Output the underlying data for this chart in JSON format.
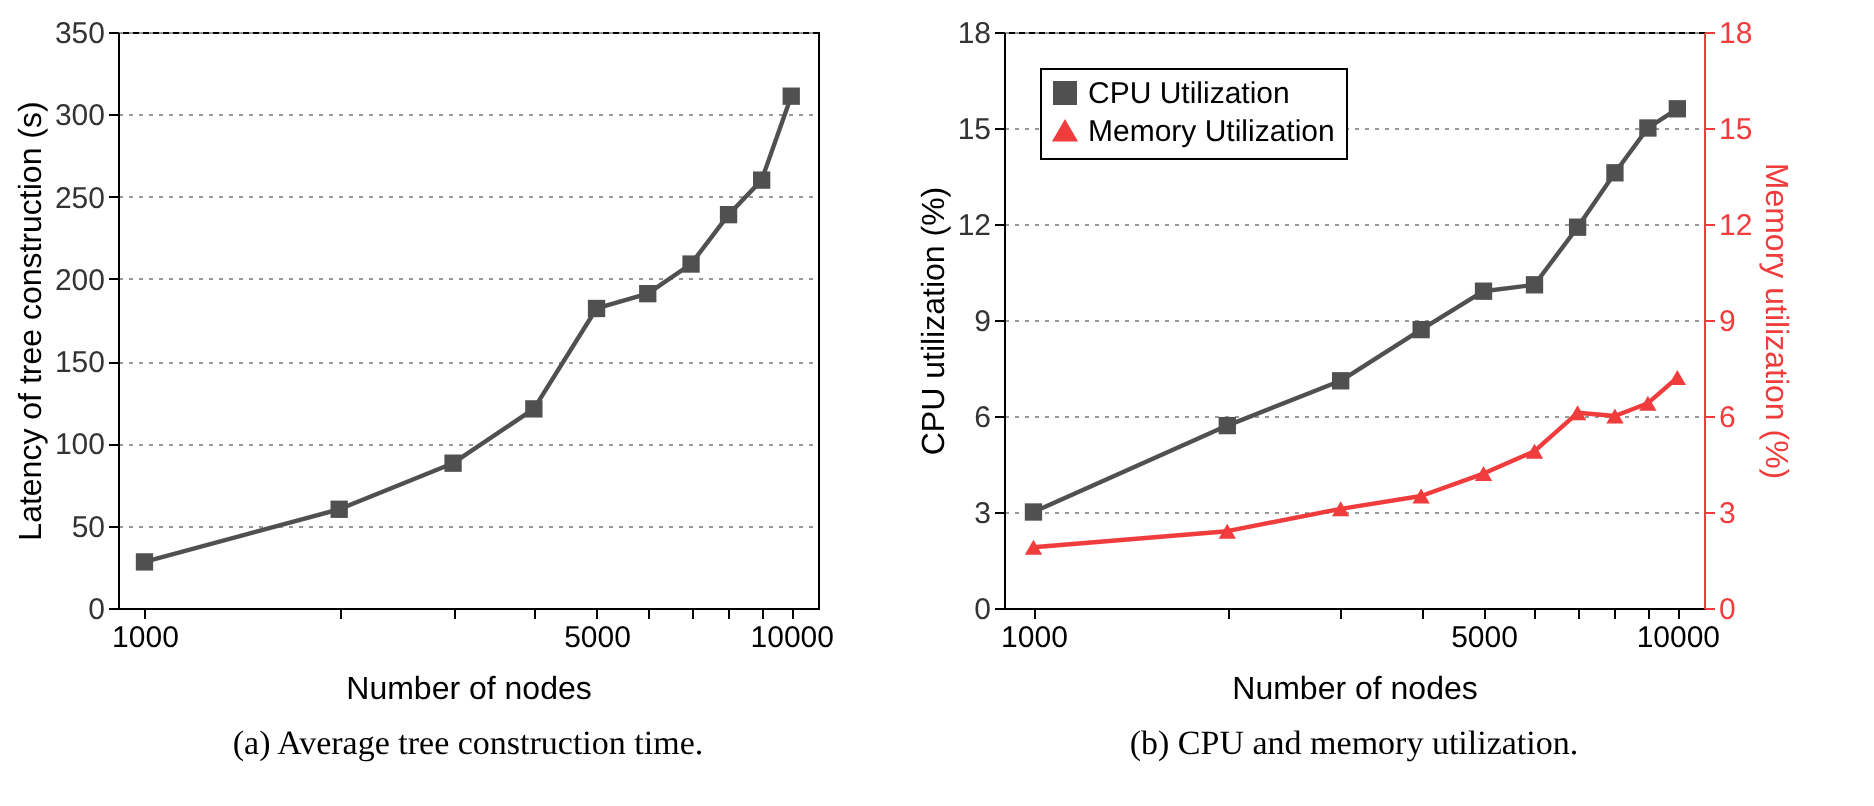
{
  "chart_data": [
    {
      "type": "line",
      "title": "(a) Average tree construction time.",
      "xlabel": "Number of nodes",
      "ylabel": "Latency of tree construction (s)",
      "x": [
        1000,
        2000,
        3000,
        4000,
        5000,
        6000,
        7000,
        8000,
        9000,
        10000
      ],
      "series": [
        {
          "color": "#505050",
          "marker": "square",
          "values": [
            28,
            60,
            88,
            121,
            182,
            191,
            209,
            239,
            260,
            311
          ]
        }
      ],
      "log": "x",
      "xlim": [
        910,
        11000
      ],
      "xticks": [
        1000,
        {
          "value": 2000,
          "label": null
        },
        {
          "value": 3000,
          "label": null
        },
        {
          "value": 4000,
          "label": null
        },
        5000,
        {
          "value": 6000,
          "label": null
        },
        {
          "value": 7000,
          "label": null
        },
        {
          "value": 8000,
          "label": null
        },
        {
          "value": 9000,
          "label": null
        },
        10000
      ],
      "ylim": [
        0,
        350
      ],
      "yticks": [
        0,
        50,
        100,
        150,
        200,
        250,
        300,
        350
      ],
      "grid": "y",
      "line_style": "solid"
    },
    {
      "type": "line",
      "title": "(b) CPU and memory utilization.",
      "xlabel": "Number of nodes",
      "ylabel": "CPU utilization (%)",
      "y2label": "Memory utilization (%)",
      "x": [
        1000,
        2000,
        3000,
        4000,
        5000,
        6000,
        7000,
        8000,
        9000,
        10000
      ],
      "series": [
        {
          "name": "CPU Utilization",
          "color": "#505050",
          "marker": "square",
          "values": [
            3.0,
            5.7,
            7.1,
            8.7,
            9.9,
            10.1,
            11.9,
            13.6,
            15.0,
            15.6
          ]
        },
        {
          "name": "Memory Utilization",
          "color": "#f03c3c",
          "marker": "triangle",
          "axis": "y2",
          "values": [
            1.9,
            2.4,
            3.1,
            3.5,
            4.2,
            4.9,
            6.1,
            6.0,
            6.4,
            7.2
          ]
        }
      ],
      "log": "x",
      "xlim": [
        900,
        11000
      ],
      "xticks": [
        1000,
        {
          "value": 2000,
          "label": null
        },
        {
          "value": 3000,
          "label": null
        },
        {
          "value": 4000,
          "label": null
        },
        5000,
        {
          "value": 6000,
          "label": null
        },
        {
          "value": 7000,
          "label": null
        },
        {
          "value": 8000,
          "label": null
        },
        {
          "value": 9000,
          "label": null
        },
        10000
      ],
      "ylim": [
        0,
        18
      ],
      "yticks": [
        0,
        3,
        6,
        9,
        12,
        15,
        18
      ],
      "y2lim": [
        0,
        18
      ],
      "y2ticks": [
        0,
        3,
        6,
        9,
        12,
        15,
        18
      ],
      "grid": "y",
      "legend": "top left",
      "line_style": "solid"
    }
  ]
}
